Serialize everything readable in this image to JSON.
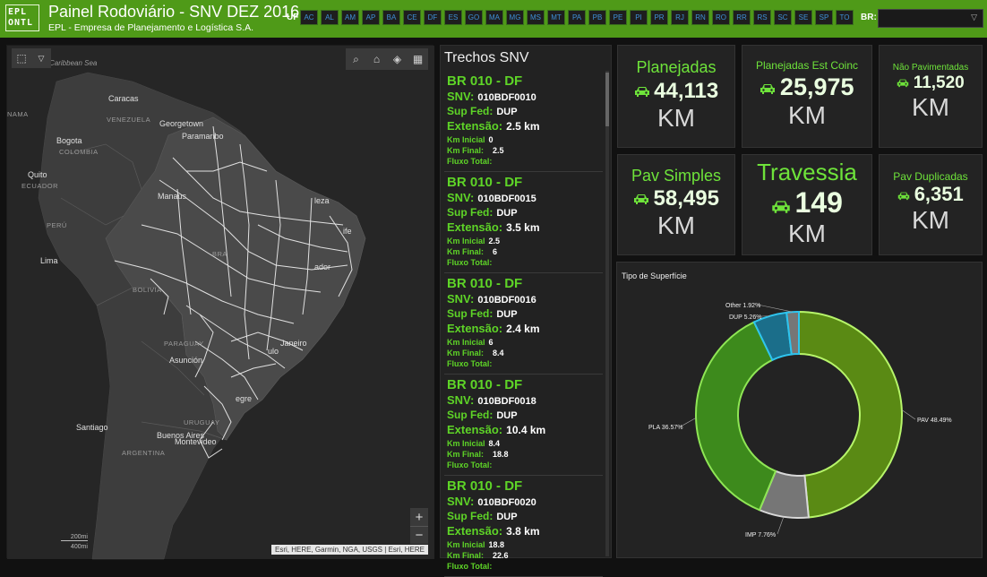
{
  "header": {
    "title": "Painel Rodoviário - SNV DEZ 2016",
    "subtitle": "EPL - Empresa de Planejamento e Logística S.A.",
    "logo_text": "EPL ONTL",
    "uf_label": "UF",
    "uf_buttons": [
      "AC",
      "AL",
      "AM",
      "AP",
      "BA",
      "CE",
      "DF",
      "ES",
      "GO",
      "MA",
      "MG",
      "MS",
      "MT",
      "PA",
      "PB",
      "PE",
      "PI",
      "PR",
      "RJ",
      "RN",
      "RO",
      "RR",
      "RS",
      "SC",
      "SE",
      "SP",
      "TO"
    ],
    "br_label": "BR:",
    "br_value": ""
  },
  "map": {
    "labels": {
      "caribbean": "Caribbean Sea",
      "caracas": "Caracas",
      "venezuela": "VENEZUELA",
      "georgetown": "Georgetown",
      "paramaribo": "Paramaribo",
      "bogota": "Bogota",
      "colombia": "COLOMBIA",
      "quito": "Quito",
      "ecuador": "ECUADOR",
      "peru": "PERÚ",
      "lima": "Lima",
      "bolivia": "BOLIVIA",
      "brasil": "BRA",
      "manaus": "Manaus",
      "fortaleza": "leza",
      "recife": "ife",
      "salvador": "ador",
      "paraguay": "PARAGUAY",
      "asuncion": "Asunción",
      "rio": "Janeiro",
      "sp": "ulo",
      "poa": "egre",
      "uruguay": "URUGUAY",
      "santiago": "Santiago",
      "buenosaires": "Buenos Aires",
      "montevideo": "Montevideo",
      "argentina": "ARGENTINA",
      "panama": "NAMA"
    },
    "scale_top": "200mi",
    "scale_bottom": "400mi",
    "attribution": "Esri, HERE, Garmin, NGA, USGS | Esri, HERE",
    "zoom_in": "+",
    "zoom_out": "−"
  },
  "list": {
    "title": "Trechos SNV",
    "labels": {
      "snv": "SNV:",
      "supfed": "Sup Fed:",
      "ext": "Extensão:",
      "kmi": "Km Inicial",
      "kmf": "Km Final:",
      "fluxo": "Fluxo Total:"
    },
    "items": [
      {
        "title": "BR 010 - DF",
        "snv": "010BDF0010",
        "supfed": "DUP",
        "ext": "2.5 km",
        "kmi": "0",
        "kmf": "2.5",
        "fluxo": ""
      },
      {
        "title": "BR 010 - DF",
        "snv": "010BDF0015",
        "supfed": "DUP",
        "ext": "3.5 km",
        "kmi": "2.5",
        "kmf": "6",
        "fluxo": ""
      },
      {
        "title": "BR 010 - DF",
        "snv": "010BDF0016",
        "supfed": "DUP",
        "ext": "2.4 km",
        "kmi": "6",
        "kmf": "8.4",
        "fluxo": ""
      },
      {
        "title": "BR 010 - DF",
        "snv": "010BDF0018",
        "supfed": "DUP",
        "ext": "10.4 km",
        "kmi": "8.4",
        "kmf": "18.8",
        "fluxo": ""
      },
      {
        "title": "BR 010 - DF",
        "snv": "010BDF0020",
        "supfed": "DUP",
        "ext": "3.8 km",
        "kmi": "18.8",
        "kmf": "22.6",
        "fluxo": ""
      }
    ]
  },
  "cards": {
    "planejadas": {
      "label": "Planejadas",
      "value": "44,113",
      "unit": "KM"
    },
    "est_coinc": {
      "label": "Planejadas Est Coinc",
      "value": "25,975",
      "unit": "KM"
    },
    "nao_pav": {
      "label": "Não Pavimentadas",
      "value": "11,520",
      "unit": "KM"
    },
    "pav_simples": {
      "label": "Pav Simples",
      "value": "58,495",
      "unit": "KM"
    },
    "travessia": {
      "label": "Travessia",
      "value": "149",
      "unit": "KM"
    },
    "pav_dup": {
      "label": "Pav Duplicadas",
      "value": "6,351",
      "unit": "KM"
    }
  },
  "colors": {
    "header_green": "#4f9a18",
    "accent_green": "#5ed427",
    "pav": "#5a8a14",
    "pla": "#3d8a1c",
    "imp": "#767676",
    "dup": "#1b6e8a",
    "other": "#767676"
  },
  "chart_data": {
    "type": "pie",
    "donut": true,
    "title": "Tipo de Superfície",
    "slices": [
      {
        "label": "PAV",
        "value": 48.49,
        "display": "PAV 48.49%"
      },
      {
        "label": "IMP",
        "value": 7.76,
        "display": "IMP 7.76%"
      },
      {
        "label": "PLA",
        "value": 36.57,
        "display": "PLA 36.57%"
      },
      {
        "label": "DUP",
        "value": 5.26,
        "display": "DUP 5.26%"
      },
      {
        "label": "Other",
        "value": 1.92,
        "display": "Other 1.92%"
      }
    ]
  }
}
